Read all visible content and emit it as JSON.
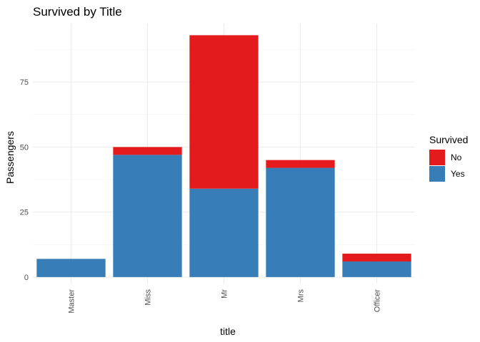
{
  "chart_data": {
    "type": "bar",
    "stacked": true,
    "title": "Survived by Title",
    "xlabel": "title",
    "ylabel": "Passengers",
    "categories": [
      "Master",
      "Miss",
      "Mr",
      "Mrs",
      "Officer"
    ],
    "series": [
      {
        "name": "No",
        "color": "#E41A1C",
        "values": [
          0,
          3,
          59,
          3,
          3
        ]
      },
      {
        "name": "Yes",
        "color": "#377EB8",
        "values": [
          7,
          47,
          34,
          42,
          6
        ]
      }
    ],
    "yticks": [
      0,
      25,
      50,
      75
    ],
    "ylim": [
      -2.5,
      97.5
    ],
    "grid": true,
    "legend": {
      "title": "Survived",
      "position": "right",
      "entries": [
        "No",
        "Yes"
      ]
    }
  }
}
